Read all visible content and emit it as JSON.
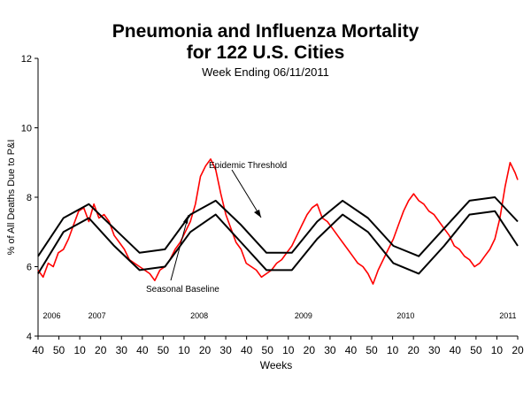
{
  "chart_data": {
    "type": "line",
    "title": "Pneumonia and Influenza Mortality",
    "subtitle": "for 122 U.S. Cities",
    "subtitle2": "Week Ending   06/11/2011",
    "xlabel": "Weeks",
    "ylabel": "% of All Deaths Due to P&I",
    "ylim": [
      4,
      12
    ],
    "yticks": [
      "4",
      "6",
      "8",
      "10",
      "12"
    ],
    "grid": false,
    "xlim_weeks": [
      40,
      229
    ],
    "xticks": [
      "40",
      "50",
      "10",
      "20",
      "30",
      "40",
      "50",
      "10",
      "20",
      "30",
      "40",
      "50",
      "10",
      "20",
      "30",
      "40",
      "50",
      "10",
      "20",
      "30",
      "40",
      "50",
      "10",
      "20"
    ],
    "year_labels": [
      {
        "label": "2006",
        "x": 47
      },
      {
        "label": "2007",
        "x": 70
      },
      {
        "label": "2008",
        "x": 122
      },
      {
        "label": "2009",
        "x": 175
      },
      {
        "label": "2010",
        "x": 227
      },
      {
        "label": "2011",
        "x": 279
      }
    ],
    "annotations": [
      {
        "text": "Epidemic Threshold"
      },
      {
        "text": "Seasonal Baseline"
      }
    ],
    "series": [
      {
        "id": "observed",
        "color": "#ff0000",
        "description": "weekly observed P&I percentage",
        "x": [
          40,
          42,
          44,
          46,
          48,
          50,
          52,
          54,
          56,
          58,
          60,
          62,
          64,
          66,
          68,
          70,
          72,
          74,
          76,
          78,
          80,
          82,
          84,
          86,
          88,
          90,
          92,
          94,
          96,
          98,
          100,
          102,
          104,
          106,
          108,
          110,
          112,
          114,
          116,
          118,
          120,
          122,
          124,
          126,
          128,
          130,
          132,
          134,
          136,
          138,
          140,
          142,
          144,
          146,
          148,
          150,
          152,
          154,
          156,
          158,
          160,
          162,
          164,
          166,
          168,
          170,
          172,
          174,
          176,
          178,
          180,
          182,
          184,
          186,
          188,
          190,
          192,
          194,
          196,
          198,
          200,
          202,
          204,
          206,
          208,
          210,
          212,
          214,
          216,
          218,
          220,
          222,
          224,
          226,
          228,
          229
        ],
        "y": [
          5.9,
          5.7,
          6.1,
          6.0,
          6.4,
          6.5,
          6.8,
          7.2,
          7.6,
          7.7,
          7.3,
          7.8,
          7.4,
          7.5,
          7.3,
          6.9,
          6.7,
          6.5,
          6.2,
          6.1,
          6.0,
          5.9,
          5.8,
          5.6,
          5.9,
          6.0,
          6.2,
          6.5,
          6.7,
          7.0,
          7.3,
          7.8,
          8.6,
          8.9,
          9.1,
          8.8,
          8.1,
          7.5,
          7.1,
          6.7,
          6.5,
          6.1,
          6.0,
          5.9,
          5.7,
          5.8,
          5.9,
          6.1,
          6.2,
          6.4,
          6.6,
          6.9,
          7.2,
          7.5,
          7.7,
          7.8,
          7.4,
          7.3,
          7.1,
          6.9,
          6.7,
          6.5,
          6.3,
          6.1,
          6.0,
          5.8,
          5.5,
          5.9,
          6.2,
          6.5,
          6.8,
          7.2,
          7.6,
          7.9,
          8.1,
          7.9,
          7.8,
          7.6,
          7.5,
          7.3,
          7.1,
          6.9,
          6.6,
          6.5,
          6.3,
          6.2,
          6.0,
          6.1,
          6.3,
          6.5,
          6.8,
          7.4,
          8.3,
          9.0,
          8.7,
          8.5
        ]
      },
      {
        "id": "epidemic-threshold",
        "color": "#000000",
        "description": "upper smooth seasonal curve",
        "x": [
          40,
          50,
          60,
          70,
          80,
          90,
          100,
          110,
          120,
          130,
          140,
          150,
          160,
          170,
          180,
          190,
          200,
          210,
          220,
          229
        ],
        "y": [
          6.3,
          7.4,
          7.8,
          7.1,
          6.4,
          6.5,
          7.5,
          7.9,
          7.2,
          6.4,
          6.4,
          7.3,
          7.9,
          7.4,
          6.6,
          6.3,
          7.1,
          7.9,
          8.0,
          7.3
        ]
      },
      {
        "id": "seasonal-baseline",
        "color": "#000000",
        "description": "lower smooth seasonal curve",
        "x": [
          40,
          50,
          60,
          70,
          80,
          90,
          100,
          110,
          120,
          130,
          140,
          150,
          160,
          170,
          180,
          190,
          200,
          210,
          220,
          229
        ],
        "y": [
          5.8,
          7.0,
          7.4,
          6.6,
          5.9,
          6.0,
          7.0,
          7.5,
          6.7,
          5.9,
          5.9,
          6.8,
          7.5,
          7.0,
          6.1,
          5.8,
          6.6,
          7.5,
          7.6,
          6.6
        ]
      }
    ]
  }
}
